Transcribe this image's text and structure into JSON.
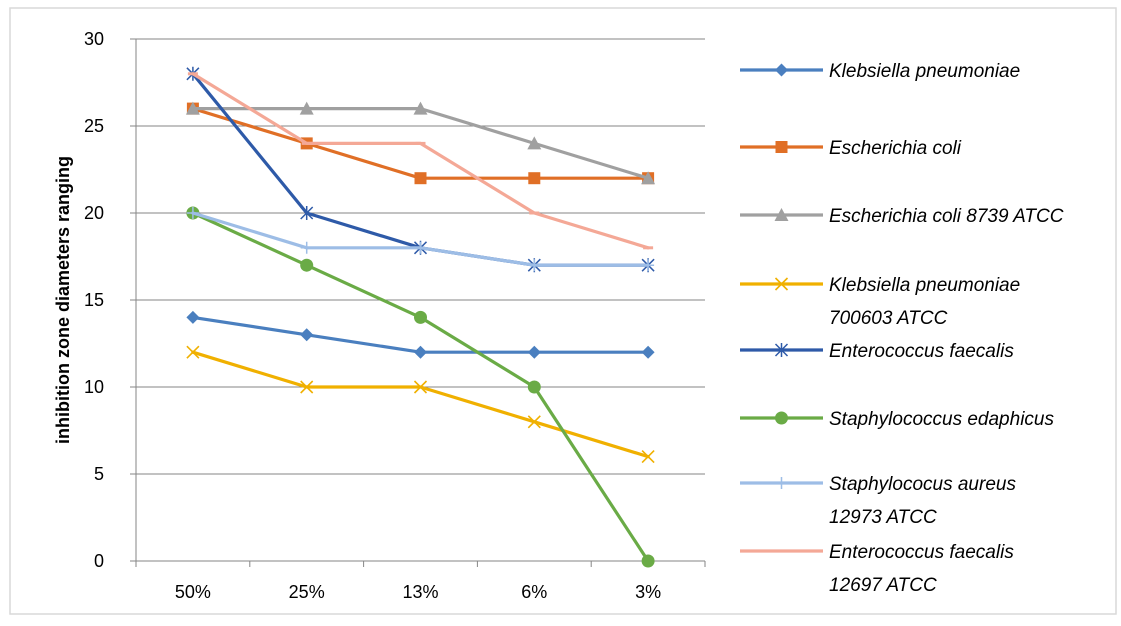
{
  "chart_data": {
    "type": "line",
    "ylabel": "inhibition zone diameters ranging",
    "xlabel": "",
    "categories": [
      "50%",
      "25%",
      "13%",
      "6%",
      "3%"
    ],
    "ylim": [
      0,
      30
    ],
    "yticks": [
      "0",
      "5",
      "10",
      "15",
      "20",
      "25",
      "30"
    ],
    "grid": "horizontal",
    "legend_position": "right",
    "series": [
      {
        "name": [
          "Klebsiella pneumoniae"
        ],
        "values": [
          14,
          13,
          12,
          12,
          12
        ],
        "color": "#4a7fbf",
        "marker": "diamond"
      },
      {
        "name": [
          "Escherichia coli"
        ],
        "values": [
          26,
          24,
          22,
          22,
          22
        ],
        "color": "#e06f26",
        "marker": "square"
      },
      {
        "name": [
          "Escherichia coli 8739 ATCC"
        ],
        "values": [
          26,
          26,
          26,
          24,
          22
        ],
        "color": "#a0a0a0",
        "marker": "triangle"
      },
      {
        "name": [
          "Klebsiella pneumoniae",
          "700603  ATCC"
        ],
        "values": [
          12,
          10,
          10,
          8,
          6
        ],
        "color": "#f0b000",
        "marker": "x"
      },
      {
        "name": [
          "Enterococcus faecalis"
        ],
        "values": [
          28,
          20,
          18,
          17,
          17
        ],
        "color": "#2e5aa8",
        "marker": "star"
      },
      {
        "name": [
          "Staphylococcus edaphicus"
        ],
        "values": [
          20,
          17,
          14,
          10,
          0
        ],
        "color": "#6aab46",
        "marker": "circle"
      },
      {
        "name": [
          "Staphylococus aureus",
          "12973 ATCC"
        ],
        "values": [
          20,
          18,
          18,
          17,
          17
        ],
        "color": "#9dbde6",
        "marker": "plus"
      },
      {
        "name": [
          "Enterococcus faecalis",
          "12697 ATCC"
        ],
        "values": [
          28,
          24,
          24,
          20,
          18
        ],
        "color": "#f4a896",
        "marker": "dash"
      }
    ]
  },
  "colors": {
    "axis": "#868686",
    "grid": "#868686",
    "border": "#d9d9d9"
  }
}
